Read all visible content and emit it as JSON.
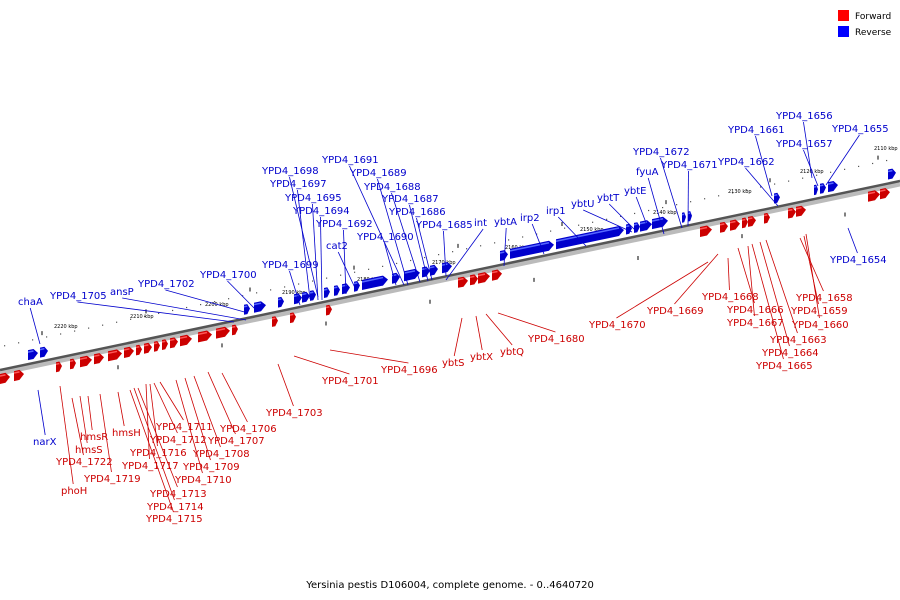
{
  "caption": "Yersinia pestis D106004, complete genome. - 0..4640720",
  "legend": [
    {
      "label": "Forward",
      "color": "#ff0000"
    },
    {
      "label": "Reverse",
      "color": "#0000ff"
    }
  ],
  "scale_labels": [
    "2110 kbp",
    "2120 kbp",
    "2130 kbp",
    "2140 kbp",
    "2150 kbp",
    "2160 kbp",
    "2170 kbp",
    "2180 kbp",
    "2190 kbp",
    "2200 kbp",
    "2210 kbp",
    "2220 kbp"
  ],
  "reverse_labels": [
    "YPD4_1656",
    "YPD4_1661",
    "YPD4_1655",
    "YPD4_1657",
    "YPD4_1672",
    "YPD4_1662",
    "YPD4_1671",
    "fyuA",
    "YPD4_1691",
    "YPD4_1698",
    "YPD4_1689",
    "YPD4_1697",
    "YPD4_1688",
    "YPD4_1695",
    "YPD4_1687",
    "YPD4_1694",
    "YPD4_1686",
    "YPD4_1692",
    "YPD4_1685",
    "cat2",
    "YPD4_1690",
    "YPD4_1699",
    "YPD4_1700",
    "YPD4_1702",
    "ansP",
    "YPD4_1705",
    "chaA",
    "int",
    "ybtA",
    "irp2",
    "irp1",
    "ybtU",
    "ybtT",
    "ybtE",
    "YPD4_1654",
    "narX"
  ],
  "forward_labels": [
    "YPD4_1668",
    "YPD4_1658",
    "YPD4_1666",
    "YPD4_1659",
    "YPD4_1667",
    "YPD4_1660",
    "YPD4_1663",
    "YPD4_1664",
    "YPD4_1665",
    "YPD4_1670",
    "YPD4_1669",
    "YPD4_1680",
    "ybtQ",
    "ybtX",
    "ybtS",
    "YPD4_1696",
    "YPD4_1701",
    "YPD4_1703",
    "YPD4_1706",
    "YPD4_1707",
    "YPD4_1708",
    "YPD4_1709",
    "YPD4_1710",
    "YPD4_1711",
    "YPD4_1712",
    "YPD4_1716",
    "YPD4_1717",
    "YPD4_1713",
    "YPD4_1714",
    "YPD4_1715",
    "hmsH",
    "hmsR",
    "hmsS",
    "YPD4_1722",
    "YPD4_1719",
    "phoH"
  ]
}
